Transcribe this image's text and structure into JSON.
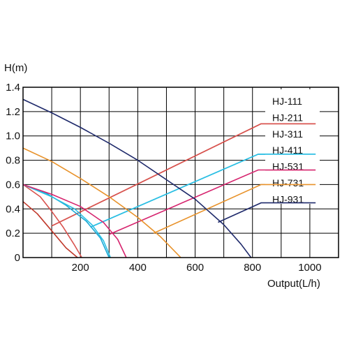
{
  "chart_data": {
    "type": "line",
    "title": "",
    "ylabel": "H(m)",
    "xlabel": "Output(L/h)",
    "xlim": [
      0,
      1100
    ],
    "ylim": [
      0,
      1.4
    ],
    "x_ticks": [
      "200",
      "400",
      "600",
      "800",
      "1000"
    ],
    "x_tick_values": [
      200,
      400,
      600,
      800,
      1000
    ],
    "y_ticks": [
      "0",
      "0.2",
      "0.4",
      "0.6",
      "0.8",
      "1.0",
      "1.2",
      "1.4"
    ],
    "y_tick_values": [
      0,
      0.2,
      0.4,
      0.6,
      0.8,
      1.0,
      1.2,
      1.4
    ],
    "grid": true,
    "legend_position": "right",
    "series": [
      {
        "name": "HJ-111",
        "color": "#c0392b",
        "points": [
          [
            0,
            0.46
          ],
          [
            50,
            0.36
          ],
          [
            100,
            0.22
          ],
          [
            150,
            0.08
          ],
          [
            190,
            0.0
          ]
        ]
      },
      {
        "name": "HJ-211",
        "color": "#d9534f",
        "points": [
          [
            0,
            0.6
          ],
          [
            60,
            0.5
          ],
          [
            100,
            0.38
          ],
          [
            140,
            0.25
          ],
          [
            180,
            0.1
          ],
          [
            205,
            0.0
          ]
        ]
      },
      {
        "name": "HJ-311",
        "color": "#1ba9d6",
        "points": [
          [
            0,
            0.6
          ],
          [
            80,
            0.53
          ],
          [
            150,
            0.43
          ],
          [
            220,
            0.3
          ],
          [
            270,
            0.16
          ],
          [
            300,
            0.0
          ]
        ]
      },
      {
        "name": "HJ-411",
        "color": "#2bc0e4",
        "points": [
          [
            0,
            0.6
          ],
          [
            100,
            0.5
          ],
          [
            180,
            0.4
          ],
          [
            240,
            0.27
          ],
          [
            280,
            0.14
          ],
          [
            305,
            0.0
          ]
        ]
      },
      {
        "name": "HJ-531",
        "color": "#d6246e",
        "points": [
          [
            0,
            0.6
          ],
          [
            100,
            0.52
          ],
          [
            200,
            0.42
          ],
          [
            280,
            0.29
          ],
          [
            330,
            0.15
          ],
          [
            360,
            0.0
          ]
        ]
      },
      {
        "name": "HJ-731",
        "color": "#e8922a",
        "points": [
          [
            0,
            0.9
          ],
          [
            100,
            0.79
          ],
          [
            200,
            0.65
          ],
          [
            300,
            0.5
          ],
          [
            400,
            0.33
          ],
          [
            480,
            0.17
          ],
          [
            550,
            0.0
          ]
        ]
      },
      {
        "name": "HJ-931",
        "color": "#1f2a6b",
        "points": [
          [
            0,
            1.3
          ],
          [
            100,
            1.19
          ],
          [
            200,
            1.07
          ],
          [
            300,
            0.94
          ],
          [
            400,
            0.8
          ],
          [
            500,
            0.64
          ],
          [
            600,
            0.48
          ],
          [
            700,
            0.27
          ],
          [
            760,
            0.11
          ],
          [
            795,
            0.0
          ]
        ]
      }
    ],
    "legend_leaders": [
      {
        "name": "HJ-111",
        "color": "#c0392b",
        "points": [
          [
            100,
            0.26
          ],
          [
            830,
            1.1
          ],
          [
            1020,
            1.1
          ]
        ]
      },
      {
        "name": "HJ-211",
        "color": "#d9534f",
        "points": [
          [
            100,
            0.26
          ],
          [
            830,
            1.1
          ],
          [
            1020,
            1.1
          ]
        ]
      },
      {
        "name": "HJ-311",
        "color": "#1ba9d6",
        "points": [
          [
            235,
            0.25
          ],
          [
            820,
            0.85
          ],
          [
            1020,
            0.85
          ]
        ]
      },
      {
        "name": "HJ-411",
        "color": "#2bc0e4",
        "points": [
          [
            235,
            0.25
          ],
          [
            820,
            0.85
          ],
          [
            1020,
            0.85
          ]
        ]
      },
      {
        "name": "HJ-531",
        "color": "#d6246e",
        "points": [
          [
            300,
            0.19
          ],
          [
            820,
            0.72
          ],
          [
            1020,
            0.72
          ]
        ]
      },
      {
        "name": "HJ-731",
        "color": "#e8922a",
        "points": [
          [
            455,
            0.2
          ],
          [
            830,
            0.6
          ],
          [
            1020,
            0.6
          ]
        ]
      },
      {
        "name": "HJ-931",
        "color": "#1f2a6b",
        "points": [
          [
            680,
            0.29
          ],
          [
            830,
            0.45
          ],
          [
            1020,
            0.45
          ]
        ]
      }
    ]
  }
}
